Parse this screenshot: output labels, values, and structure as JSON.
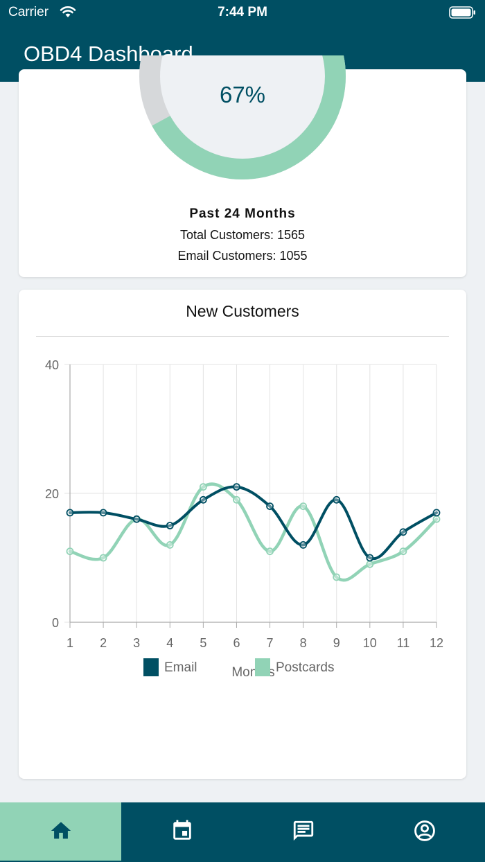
{
  "status_bar": {
    "carrier": "Carrier",
    "time": "7:44 PM"
  },
  "app": {
    "title": "OBD4 Dashboard"
  },
  "email_card": {
    "percent_label": "67%",
    "percent_value": 67,
    "period": "Past 24 Months",
    "total_customers": "Total Customers: 1565",
    "email_customers": "Email Customers: 1055"
  },
  "chart_card": {
    "title": "New Customers",
    "chart_data": {
      "type": "line",
      "categories": [
        "1",
        "2",
        "3",
        "4",
        "5",
        "6",
        "7",
        "8",
        "9",
        "10",
        "11",
        "12"
      ],
      "series": [
        {
          "name": "Email",
          "color": "#004f63",
          "values": [
            17,
            17,
            16,
            15,
            19,
            21,
            18,
            12,
            19,
            10,
            14,
            17
          ]
        },
        {
          "name": "Postcards",
          "color": "#91d3b6",
          "values": [
            11,
            10,
            16,
            12,
            21,
            19,
            11,
            18,
            7,
            9,
            11,
            16
          ]
        }
      ],
      "xlabel": "Months",
      "ylabel": "",
      "ylim": [
        0,
        40
      ],
      "yticks": [
        "0",
        "20",
        "40"
      ],
      "grid": true,
      "legend_position": "bottom"
    }
  },
  "colors": {
    "primary": "#004f63",
    "accent": "#91d3b6",
    "background": "#eef1f4"
  },
  "tabs": [
    {
      "icon": "home-icon",
      "active": true
    },
    {
      "icon": "calendar-icon",
      "active": false
    },
    {
      "icon": "message-icon",
      "active": false
    },
    {
      "icon": "account-icon",
      "active": false
    }
  ]
}
